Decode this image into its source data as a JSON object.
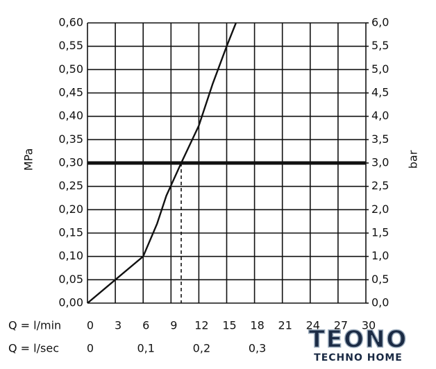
{
  "chart_data": {
    "type": "line",
    "x_label": "Q = l/min",
    "x2_label": "Q = l/sec",
    "y_label": "MPa",
    "y2_label": "bar",
    "x": [
      0,
      3,
      6,
      7.5,
      8.5,
      10.1,
      12,
      13.5,
      15,
      16
    ],
    "series": [
      {
        "color": "#111111",
        "values": [
          0,
          0.05,
          0.1,
          0.17,
          0.23,
          0.3,
          0.38,
          0.47,
          0.55,
          0.6
        ]
      }
    ],
    "xlim": [
      0,
      30
    ],
    "xticks": [
      0,
      3,
      6,
      9,
      12,
      15,
      18,
      21,
      24,
      27,
      30
    ],
    "x2lim": [
      0,
      0.5
    ],
    "x2ticks": [
      0,
      {
        "value": 0.1,
        "label": "0,1"
      },
      {
        "value": 0.2,
        "label": "0,2"
      },
      {
        "value": 0.3,
        "label": "0,3"
      }
    ],
    "ylim": [
      0,
      0.6
    ],
    "yticks": [
      {
        "value": 0,
        "label": "0,00"
      },
      {
        "value": 0.05,
        "label": "0,05"
      },
      {
        "value": 0.1,
        "label": "0,10"
      },
      {
        "value": 0.15,
        "label": "0,15"
      },
      {
        "value": 0.2,
        "label": "0,20"
      },
      {
        "value": 0.25,
        "label": "0,25"
      },
      {
        "value": 0.3,
        "label": "0,30"
      },
      {
        "value": 0.35,
        "label": "0,35"
      },
      {
        "value": 0.4,
        "label": "0,40"
      },
      {
        "value": 0.45,
        "label": "0,45"
      },
      {
        "value": 0.5,
        "label": "0,50"
      },
      {
        "value": 0.55,
        "label": "0,55"
      },
      {
        "value": 0.6,
        "label": "0,60"
      }
    ],
    "y2lim": [
      0,
      6
    ],
    "y2ticks": [
      {
        "value": 0,
        "label": "0,0"
      },
      {
        "value": 0.5,
        "label": "0,5"
      },
      {
        "value": 1,
        "label": "1,0"
      },
      {
        "value": 1.5,
        "label": "1,5"
      },
      {
        "value": 2,
        "label": "2,0"
      },
      {
        "value": 2.5,
        "label": "2,5"
      },
      {
        "value": 3,
        "label": "3,0"
      },
      {
        "value": 3.5,
        "label": "3,5"
      },
      {
        "value": 4,
        "label": "4,0"
      },
      {
        "value": 4.5,
        "label": "4,5"
      },
      {
        "value": 5,
        "label": "5,0"
      },
      {
        "value": 5.5,
        "label": "5,5"
      },
      {
        "value": 6,
        "label": "6,0"
      }
    ],
    "grid": true,
    "hline": 0.3,
    "vline": 10.1
  },
  "watermark": {
    "title": "TEONO",
    "subtitle": "TECHNO HOME"
  }
}
